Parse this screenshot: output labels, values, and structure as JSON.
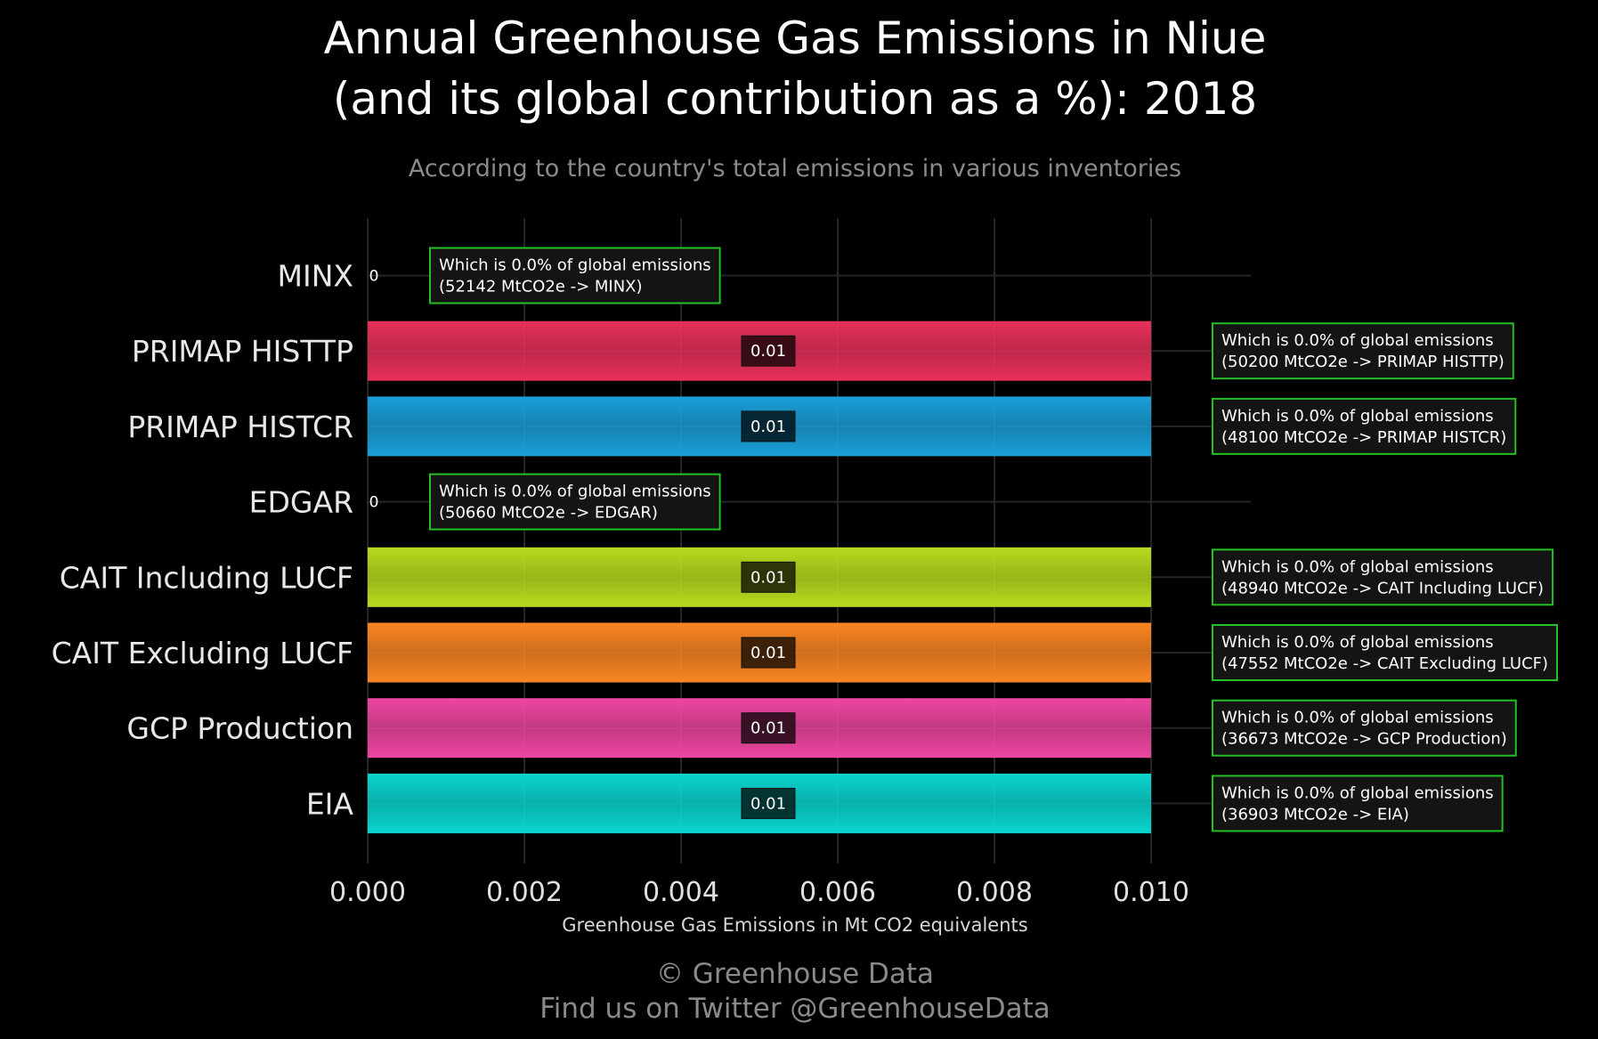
{
  "chart_data": {
    "type": "bar",
    "orientation": "horizontal",
    "title_line1": "Annual Greenhouse Gas Emissions in Niue",
    "title_line2": "(and its global contribution as a %): 2018",
    "subtitle": "According to the country's total emissions in various inventories",
    "xlabel": "Greenhouse Gas Emissions in Mt CO2 equivalents",
    "xlim": [
      0,
      0.0113
    ],
    "xticks": [
      "0.000",
      "0.002",
      "0.004",
      "0.006",
      "0.008",
      "0.010"
    ],
    "grid": true,
    "categories": [
      "MINX",
      "PRIMAP HISTTP",
      "PRIMAP HISTCR",
      "EDGAR",
      "CAIT Including LUCF",
      "CAIT Excluding LUCF",
      "GCP Production",
      "EIA"
    ],
    "values": [
      0,
      0.01,
      0.01,
      0,
      0.01,
      0.01,
      0.01,
      0.01
    ],
    "value_labels": [
      "0",
      "0.01",
      "0.01",
      "0",
      "0.01",
      "0.01",
      "0.01",
      "0.01"
    ],
    "colors": [
      "#000000",
      "#e8305a",
      "#1a9fd8",
      "#000000",
      "#b8dc1e",
      "#fb8623",
      "#ee46a0",
      "#0ad6cf"
    ],
    "annotations": [
      {
        "line1": "Which is 0.0% of global emissions",
        "line2": "(52142 MtCO2e -> MINX)"
      },
      {
        "line1": "Which is 0.0% of global emissions",
        "line2": "(50200 MtCO2e -> PRIMAP HISTTP)"
      },
      {
        "line1": "Which is 0.0% of global emissions",
        "line2": "(48100 MtCO2e -> PRIMAP HISTCR)"
      },
      {
        "line1": "Which is 0.0% of global emissions",
        "line2": "(50660 MtCO2e -> EDGAR)"
      },
      {
        "line1": "Which is 0.0% of global emissions",
        "line2": "(48940 MtCO2e -> CAIT Including LUCF)"
      },
      {
        "line1": "Which is 0.0% of global emissions",
        "line2": "(47552 MtCO2e -> CAIT Excluding LUCF)"
      },
      {
        "line1": "Which is 0.0% of global emissions",
        "line2": "(36673 MtCO2e -> GCP Production)"
      },
      {
        "line1": "Which is 0.0% of global emissions",
        "line2": "(36903 MtCO2e -> EIA)"
      }
    ],
    "annotation_border_color": "#22c022",
    "connector_color": "#22e022"
  },
  "footer": {
    "line1": "© Greenhouse Data",
    "line2": "Find us on Twitter @GreenhouseData"
  }
}
